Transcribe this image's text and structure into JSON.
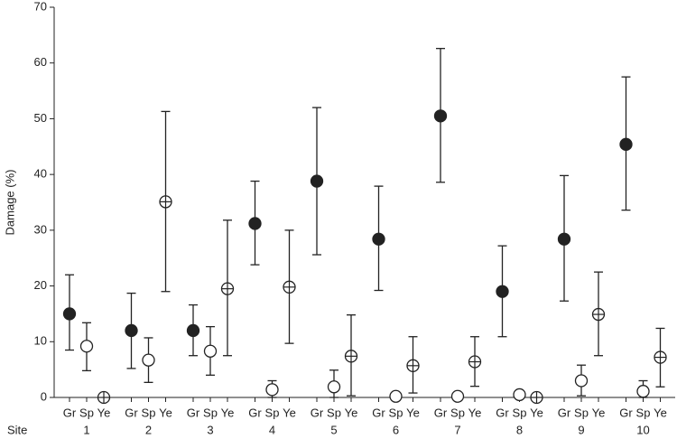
{
  "chart_data": {
    "type": "errorbar",
    "y_label": "Damage (%)",
    "x_label": "Site",
    "sites": [
      "1",
      "2",
      "3",
      "4",
      "5",
      "6",
      "7",
      "8",
      "9",
      "10"
    ],
    "series": [
      {
        "name": "Gr",
        "marker": "filled",
        "color": "#222",
        "values": [
          15,
          12,
          12,
          31.2,
          38.8,
          28.4,
          50.5,
          19,
          28.4,
          45.4
        ],
        "lower": [
          8.5,
          5.2,
          7.5,
          23.8,
          25.6,
          19.2,
          38.6,
          10.9,
          17.3,
          33.6
        ],
        "upper": [
          22,
          18.7,
          16.6,
          38.8,
          52,
          37.9,
          62.6,
          27.2,
          39.8,
          57.5
        ]
      },
      {
        "name": "Sp",
        "marker": "open",
        "color": "#222",
        "values": [
          9.2,
          6.7,
          8.3,
          1.4,
          1.9,
          0.2,
          0.2,
          0.5,
          3,
          1.1
        ],
        "lower": [
          4.8,
          2.7,
          4,
          0,
          0,
          null,
          null,
          null,
          0.3,
          0
        ],
        "upper": [
          13.4,
          10.7,
          12.7,
          3,
          4.9,
          null,
          null,
          null,
          5.8,
          3
        ]
      },
      {
        "name": "Ye",
        "marker": "crossed",
        "color": "#222",
        "values": [
          0,
          35.1,
          19.5,
          19.8,
          7.4,
          5.7,
          6.4,
          0,
          14.9,
          7.2
        ],
        "lower": [
          null,
          19,
          7.5,
          9.7,
          0.3,
          0.8,
          2,
          null,
          7.5,
          1.9
        ],
        "upper": [
          null,
          51.3,
          31.8,
          30,
          14.8,
          10.9,
          10.9,
          null,
          22.5,
          12.4
        ]
      }
    ],
    "ylim": [
      0,
      70
    ],
    "yticks": [
      0,
      10,
      20,
      30,
      40,
      50,
      60,
      70
    ]
  }
}
